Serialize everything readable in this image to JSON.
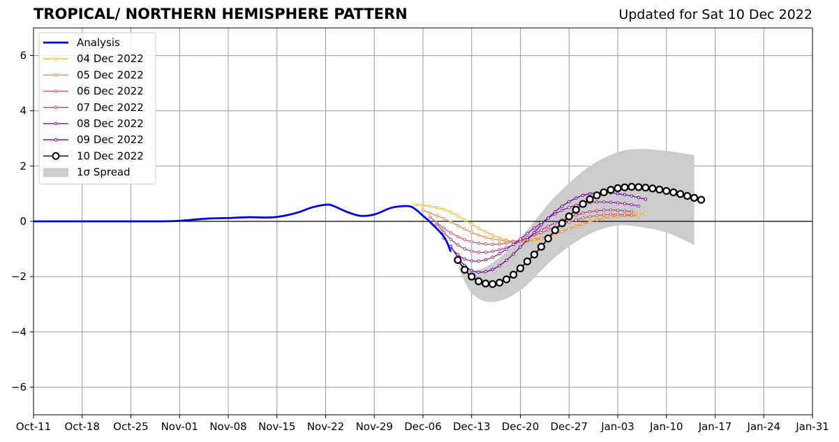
{
  "header": {
    "title": "TROPICAL/ NORTHERN HEMISPHERE PATTERN",
    "updated": "Updated for Sat 10 Dec 2022"
  },
  "chart_data": {
    "type": "line",
    "title": "TROPICAL/ NORTHERN HEMISPHERE PATTERN",
    "xlabel": "",
    "ylabel": "",
    "xlim": [
      "2022-10-11",
      "2023-01-31"
    ],
    "ylim": [
      -7,
      7
    ],
    "x_ticks": [
      "Oct-11",
      "Oct-18",
      "Oct-25",
      "Nov-01",
      "Nov-08",
      "Nov-15",
      "Nov-22",
      "Nov-29",
      "Dec-06",
      "Dec-13",
      "Dec-20",
      "Dec-27",
      "Jan-03",
      "Jan-10",
      "Jan-17",
      "Jan-24",
      "Jan-31"
    ],
    "y_ticks": [
      "6",
      "4",
      "2",
      "0",
      "−2",
      "−4",
      "−6"
    ],
    "y_tick_values": [
      6,
      4,
      2,
      0,
      -2,
      -4,
      -6
    ],
    "grid": true,
    "legend_position": "upper-left",
    "analysis": {
      "name": "Analysis",
      "color": "#0000dd",
      "x": [
        "2022-10-11",
        "2022-10-20",
        "2022-10-29",
        "2022-11-01",
        "2022-11-05",
        "2022-11-08",
        "2022-11-11",
        "2022-11-14",
        "2022-11-16",
        "2022-11-18",
        "2022-11-20",
        "2022-11-22",
        "2022-11-23",
        "2022-11-25",
        "2022-11-27",
        "2022-11-29",
        "2022-12-01",
        "2022-12-02",
        "2022-12-04",
        "2022-12-05",
        "2022-12-06",
        "2022-12-07",
        "2022-12-09",
        "2022-12-10"
      ],
      "values": [
        0,
        0,
        0,
        0.02,
        0.1,
        0.12,
        0.15,
        0.14,
        0.2,
        0.32,
        0.5,
        0.6,
        0.57,
        0.35,
        0.2,
        0.25,
        0.45,
        0.52,
        0.55,
        0.42,
        0.2,
        -0.02,
        -0.55,
        -1.1
      ]
    },
    "forecasts": [
      {
        "name": "04 Dec 2022",
        "color": "#f7b52c",
        "start": "2022-12-05",
        "values": [
          0.6,
          0.58,
          0.55,
          0.5,
          0.43,
          0.33,
          0.2,
          0.05,
          -0.1,
          -0.25,
          -0.38,
          -0.5,
          -0.6,
          -0.67,
          -0.72,
          -0.74,
          -0.73,
          -0.7,
          -0.64,
          -0.56,
          -0.47,
          -0.37,
          -0.27,
          -0.17,
          -0.08,
          0.0,
          0.07,
          0.13,
          0.18,
          0.22,
          0.25,
          0.27,
          0.28,
          0.28
        ]
      },
      {
        "name": "05 Dec 2022",
        "color": "#ef8a47",
        "start": "2022-12-06",
        "values": [
          0.4,
          0.3,
          0.2,
          0.1,
          -0.02,
          -0.15,
          -0.28,
          -0.4,
          -0.5,
          -0.58,
          -0.64,
          -0.68,
          -0.71,
          -0.72,
          -0.72,
          -0.7,
          -0.66,
          -0.6,
          -0.53,
          -0.45,
          -0.36,
          -0.27,
          -0.18,
          -0.1,
          -0.02,
          0.05,
          0.11,
          0.15,
          0.18,
          0.2,
          0.21,
          0.2
        ]
      },
      {
        "name": "06 Dec 2022",
        "color": "#d5556b",
        "start": "2022-12-07",
        "values": [
          0.15,
          -0.05,
          -0.25,
          -0.42,
          -0.55,
          -0.66,
          -0.74,
          -0.79,
          -0.82,
          -0.83,
          -0.82,
          -0.79,
          -0.74,
          -0.67,
          -0.59,
          -0.5,
          -0.41,
          -0.31,
          -0.21,
          -0.12,
          -0.03,
          0.05,
          0.12,
          0.17,
          0.21,
          0.24,
          0.25,
          0.25,
          0.24,
          0.22
        ]
      },
      {
        "name": "07 Dec 2022",
        "color": "#b43c8c",
        "start": "2022-12-08",
        "values": [
          -0.1,
          -0.4,
          -0.65,
          -0.85,
          -1.0,
          -1.08,
          -1.12,
          -1.12,
          -1.09,
          -1.03,
          -0.95,
          -0.84,
          -0.72,
          -0.59,
          -0.45,
          -0.31,
          -0.18,
          -0.06,
          0.05,
          0.15,
          0.23,
          0.3,
          0.35,
          0.38,
          0.4,
          0.41,
          0.4,
          0.38,
          0.35
        ]
      },
      {
        "name": "08 Dec 2022",
        "color": "#9a18aa",
        "start": "2022-12-09",
        "values": [
          -0.6,
          -0.95,
          -1.2,
          -1.36,
          -1.43,
          -1.44,
          -1.39,
          -1.3,
          -1.17,
          -1.01,
          -0.83,
          -0.64,
          -0.44,
          -0.24,
          -0.05,
          0.12,
          0.27,
          0.4,
          0.5,
          0.58,
          0.64,
          0.68,
          0.7,
          0.7,
          0.69,
          0.67,
          0.64,
          0.6,
          0.55
        ]
      },
      {
        "name": "09 Dec 2022",
        "color": "#6a00a8",
        "start": "2022-12-10",
        "values": [
          -0.9,
          -1.3,
          -1.6,
          -1.78,
          -1.84,
          -1.82,
          -1.74,
          -1.6,
          -1.41,
          -1.18,
          -0.93,
          -0.67,
          -0.4,
          -0.13,
          0.12,
          0.35,
          0.55,
          0.71,
          0.84,
          0.94,
          1.0,
          1.03,
          1.04,
          1.03,
          1.0,
          0.96,
          0.92,
          0.86,
          0.8
        ]
      },
      {
        "name": "10 Dec 2022",
        "color": "#000000",
        "start": "2022-12-11",
        "values": [
          -1.4,
          -1.75,
          -2.0,
          -2.17,
          -2.25,
          -2.27,
          -2.22,
          -2.1,
          -1.93,
          -1.7,
          -1.45,
          -1.2,
          -0.92,
          -0.62,
          -0.32,
          -0.07,
          0.18,
          0.42,
          0.63,
          0.8,
          0.94,
          1.05,
          1.14,
          1.2,
          1.23,
          1.25,
          1.24,
          1.22,
          1.19,
          1.15,
          1.1,
          1.05,
          0.99,
          0.92,
          0.85,
          0.78
        ]
      }
    ],
    "spread": {
      "name": "1σ Spread",
      "color": "#cccccc",
      "x": [
        "2022-12-11",
        "2022-12-13",
        "2022-12-16",
        "2022-12-20",
        "2022-12-25",
        "2022-12-30",
        "2023-01-03",
        "2023-01-06",
        "2023-01-10",
        "2023-01-14"
      ],
      "upper": [
        -1.6,
        -1.8,
        -1.5,
        -0.6,
        0.9,
        2.0,
        2.5,
        2.62,
        2.55,
        2.4
      ],
      "lower": [
        -1.6,
        -2.6,
        -2.92,
        -2.5,
        -1.3,
        -0.45,
        -0.15,
        -0.2,
        -0.4,
        -0.85
      ]
    }
  }
}
